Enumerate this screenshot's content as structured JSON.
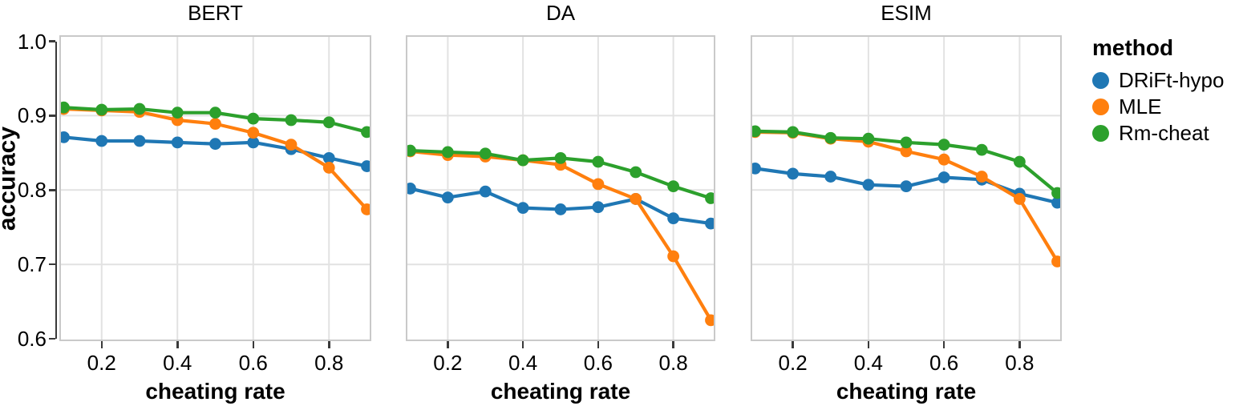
{
  "figure": {
    "ylabel": "accuracy",
    "xlabel": "cheating rate",
    "background": "#ffffff",
    "grid_color": "#e2e2e2",
    "panel_border_color": "#c9c9c9",
    "axis_color": "#3a3a3a",
    "legend": {
      "title": "method",
      "items": [
        {
          "label": "DRiFt-hypo",
          "color": "#1f77b4"
        },
        {
          "label": "MLE",
          "color": "#ff7f0e"
        },
        {
          "label": "Rm-cheat",
          "color": "#2ca02c"
        }
      ]
    }
  },
  "chart_data": [
    {
      "type": "line",
      "title": "BERT",
      "xlabel": "cheating rate",
      "ylabel": "accuracy",
      "x": [
        0.1,
        0.2,
        0.3,
        0.4,
        0.5,
        0.6,
        0.7,
        0.8,
        0.9
      ],
      "series": [
        {
          "name": "DRiFt-hypo",
          "color": "#1f77b4",
          "values": [
            0.871,
            0.866,
            0.866,
            0.864,
            0.862,
            0.864,
            0.855,
            0.843,
            0.832
          ]
        },
        {
          "name": "MLE",
          "color": "#ff7f0e",
          "values": [
            0.909,
            0.907,
            0.905,
            0.894,
            0.889,
            0.877,
            0.861,
            0.83,
            0.774
          ]
        },
        {
          "name": "Rm-cheat",
          "color": "#2ca02c",
          "values": [
            0.911,
            0.908,
            0.909,
            0.904,
            0.904,
            0.896,
            0.894,
            0.891,
            0.878
          ]
        }
      ],
      "xlim": [
        0.1,
        0.9
      ],
      "ylim": [
        0.6,
        1.0
      ],
      "x_ticks": [
        0.2,
        0.4,
        0.6,
        0.8
      ],
      "y_ticks": [
        1.0,
        0.9,
        0.8,
        0.7,
        0.6
      ],
      "grid": true,
      "legend_position": "right-outside"
    },
    {
      "type": "line",
      "title": "DA",
      "xlabel": "cheating rate",
      "ylabel": "accuracy",
      "x": [
        0.1,
        0.2,
        0.3,
        0.4,
        0.5,
        0.6,
        0.7,
        0.8,
        0.9
      ],
      "series": [
        {
          "name": "DRiFt-hypo",
          "color": "#1f77b4",
          "values": [
            0.802,
            0.79,
            0.798,
            0.776,
            0.774,
            0.777,
            0.788,
            0.762,
            0.755
          ]
        },
        {
          "name": "MLE",
          "color": "#ff7f0e",
          "values": [
            0.852,
            0.847,
            0.845,
            0.84,
            0.834,
            0.808,
            0.788,
            0.711,
            0.625
          ]
        },
        {
          "name": "Rm-cheat",
          "color": "#2ca02c",
          "values": [
            0.853,
            0.851,
            0.849,
            0.84,
            0.843,
            0.838,
            0.824,
            0.805,
            0.789
          ]
        }
      ],
      "xlim": [
        0.1,
        0.9
      ],
      "ylim": [
        0.6,
        1.0
      ],
      "x_ticks": [
        0.2,
        0.4,
        0.6,
        0.8
      ],
      "y_ticks": [
        1.0,
        0.9,
        0.8,
        0.7,
        0.6
      ],
      "grid": true,
      "legend_position": "right-outside"
    },
    {
      "type": "line",
      "title": "ESIM",
      "xlabel": "cheating rate",
      "ylabel": "accuracy",
      "x": [
        0.1,
        0.2,
        0.3,
        0.4,
        0.5,
        0.6,
        0.7,
        0.8,
        0.9
      ],
      "series": [
        {
          "name": "DRiFt-hypo",
          "color": "#1f77b4",
          "values": [
            0.829,
            0.822,
            0.818,
            0.807,
            0.805,
            0.817,
            0.814,
            0.795,
            0.783
          ]
        },
        {
          "name": "MLE",
          "color": "#ff7f0e",
          "values": [
            0.878,
            0.877,
            0.869,
            0.865,
            0.852,
            0.841,
            0.818,
            0.788,
            0.704
          ]
        },
        {
          "name": "Rm-cheat",
          "color": "#2ca02c",
          "values": [
            0.879,
            0.878,
            0.87,
            0.869,
            0.864,
            0.861,
            0.854,
            0.838,
            0.796
          ]
        }
      ],
      "xlim": [
        0.1,
        0.9
      ],
      "ylim": [
        0.6,
        1.0
      ],
      "x_ticks": [
        0.2,
        0.4,
        0.6,
        0.8
      ],
      "y_ticks": [
        1.0,
        0.9,
        0.8,
        0.7,
        0.6
      ],
      "grid": true,
      "legend_position": "right-outside"
    }
  ]
}
